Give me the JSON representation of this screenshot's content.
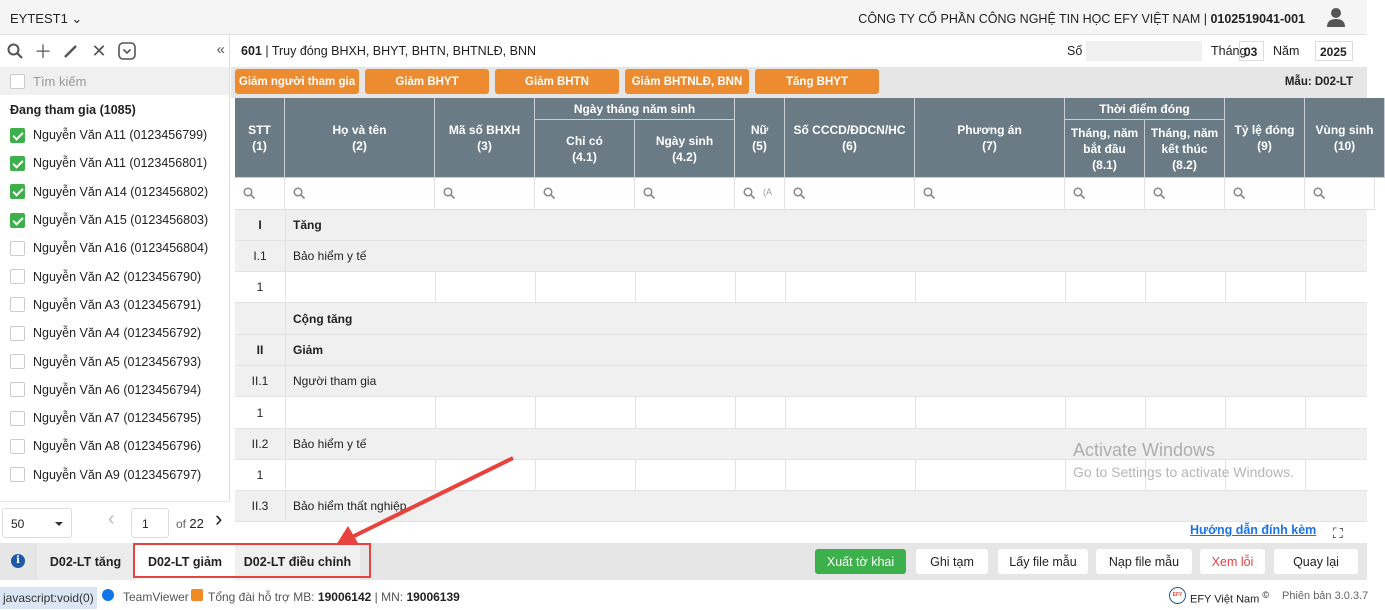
{
  "topbar": {
    "app_name": "EYTEST1",
    "company": "CÔNG TY CỔ PHẦN CÔNG NGHỆ TIN HỌC EFY VIỆT NAM | ",
    "tax_code": "0102519041-001"
  },
  "sidebar": {
    "search_placeholder": "Tìm kiếm",
    "group": "Đang tham gia (1085)",
    "items": [
      {
        "label": "Nguyễn Văn A11 (0123456799)",
        "checked": true
      },
      {
        "label": "Nguyễn Văn A11 (0123456801)",
        "checked": true
      },
      {
        "label": "Nguyễn Văn A14 (0123456802)",
        "checked": true
      },
      {
        "label": "Nguyễn Văn A15 (0123456803)",
        "checked": true
      },
      {
        "label": "Nguyễn Văn A16 (0123456804)",
        "checked": false
      },
      {
        "label": "Nguyễn Văn A2 (0123456790)",
        "checked": false
      },
      {
        "label": "Nguyễn Văn A3 (0123456791)",
        "checked": false
      },
      {
        "label": "Nguyễn Văn A4 (0123456792)",
        "checked": false
      },
      {
        "label": "Nguyễn Văn A5 (0123456793)",
        "checked": false
      },
      {
        "label": "Nguyễn Văn A6 (0123456794)",
        "checked": false
      },
      {
        "label": "Nguyễn Văn A7 (0123456795)",
        "checked": false
      },
      {
        "label": "Nguyễn Văn A8 (0123456796)",
        "checked": false
      },
      {
        "label": "Nguyễn Văn A9 (0123456797)",
        "checked": false
      }
    ],
    "pager": {
      "page_size": "50",
      "page": "1",
      "of": "of",
      "total": "22"
    }
  },
  "form": {
    "title_code": "601",
    "title": " | Truy đóng BHXH, BHYT, BHTN, BHTNLĐ, BNN",
    "so_label": "Số",
    "so_value": "",
    "thang_label": "Tháng",
    "thang": "03",
    "nam_label": "Năm",
    "nam": "2025",
    "mau": "Mẫu: D02-LT",
    "action_buttons": [
      "Giảm người tham gia",
      "Giảm BHYT",
      "Giảm BHTN",
      "Giảm BHTNLĐ, BNN",
      "Tăng BHYT"
    ]
  },
  "table": {
    "headers": {
      "stt": "STT\n(1)",
      "name": "Họ và tên\n(2)",
      "bhxh": "Mã số BHXH\n(3)",
      "dob_group": "Ngày tháng năm sinh",
      "dob_only": "Chỉ có\n(4.1)",
      "dob": "Ngày sinh\n(4.2)",
      "female": "Nữ\n(5)",
      "cccd": "Số CCCD/ĐDCN/HC\n(6)",
      "plan": "Phương án\n(7)",
      "time_group": "Thời điểm đóng",
      "start": "Tháng, năm\nbắt đầu\n(8.1)",
      "end": "Tháng, năm\nkết thúc\n(8.2)",
      "rate": "Tỷ lệ đóng\n(9)",
      "region": "Vùng sinh\n(10)"
    },
    "female_filter": "(A",
    "rows": [
      {
        "stt": "I",
        "name": "Tăng",
        "type": "section"
      },
      {
        "stt": "I.1",
        "name": "Bảo hiểm y tế",
        "type": "sub"
      },
      {
        "stt": "1",
        "name": "",
        "type": "data"
      },
      {
        "stt": "",
        "name": "Cộng tăng",
        "type": "section"
      },
      {
        "stt": "II",
        "name": "Giảm",
        "type": "section"
      },
      {
        "stt": "II.1",
        "name": "Người tham gia",
        "type": "sub"
      },
      {
        "stt": "1",
        "name": "",
        "type": "data"
      },
      {
        "stt": "II.2",
        "name": "Bảo hiểm y tế",
        "type": "sub"
      },
      {
        "stt": "1",
        "name": "",
        "type": "data"
      },
      {
        "stt": "II.3",
        "name": "Bảo hiểm thất nghiệp",
        "type": "sub"
      }
    ]
  },
  "guide_link": "Hướng dẫn đính kèm",
  "tabs": [
    "D02-LT tăng",
    "D02-LT giảm",
    "D02-LT điều chỉnh"
  ],
  "buttons": {
    "export": "Xuất tờ khai",
    "save_draft": "Ghi tạm",
    "get_template": "Lấy file mẫu",
    "load_template": "Nạp file mẫu",
    "view_errors": "Xem lỗi",
    "back": "Quay lại"
  },
  "status": {
    "link": "javascript:void(0)",
    "teamviewer": "TeamViewer",
    "hotline_label": "Tổng đài hỗ trợ MB: ",
    "mb": "19006142",
    "sep": " | MN: ",
    "mn": "19006139",
    "brand": "EFY Việt Nam",
    "copyright": "©",
    "version": "Phiên bản 3.0.3.7"
  },
  "watermark": {
    "line1": "Activate Windows",
    "line2": "Go to Settings to activate Windows."
  },
  "colors": {
    "orange": "#ec8b2f",
    "header": "#6b7b86",
    "green": "#3cb04a",
    "highlight": "#e8423f",
    "link": "#1a73e8"
  }
}
